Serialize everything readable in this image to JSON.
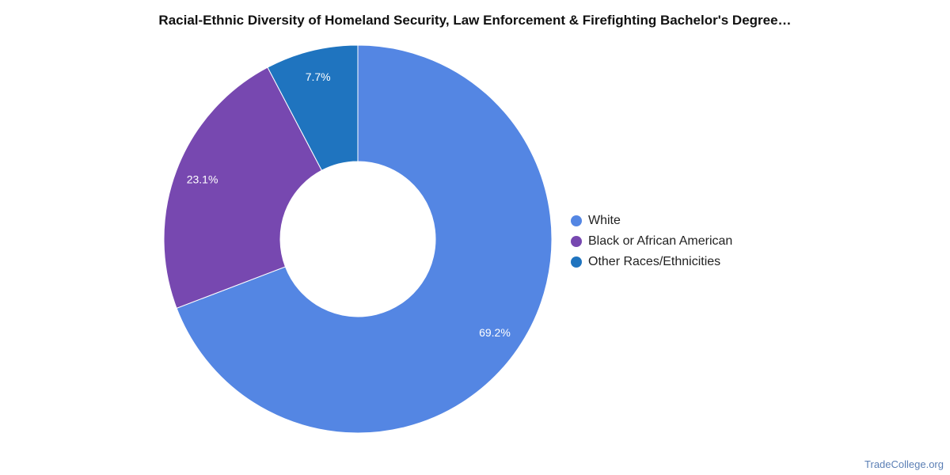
{
  "chart_data": {
    "type": "pie",
    "title": "Racial-Ethnic Diversity of Homeland Security, Law Enforcement & Firefighting Bachelor's Degree…",
    "categories": [
      "White",
      "Black or African American",
      "Other Races/Ethnicities"
    ],
    "values": [
      69.2,
      23.1,
      7.7
    ],
    "value_labels": [
      "69.2%",
      "23.1%",
      "7.7%"
    ],
    "colors": [
      "#5486e3",
      "#7748b0",
      "#1f74bf"
    ],
    "donut": true,
    "legend_position": "right"
  },
  "source": "TradeCollege.org"
}
